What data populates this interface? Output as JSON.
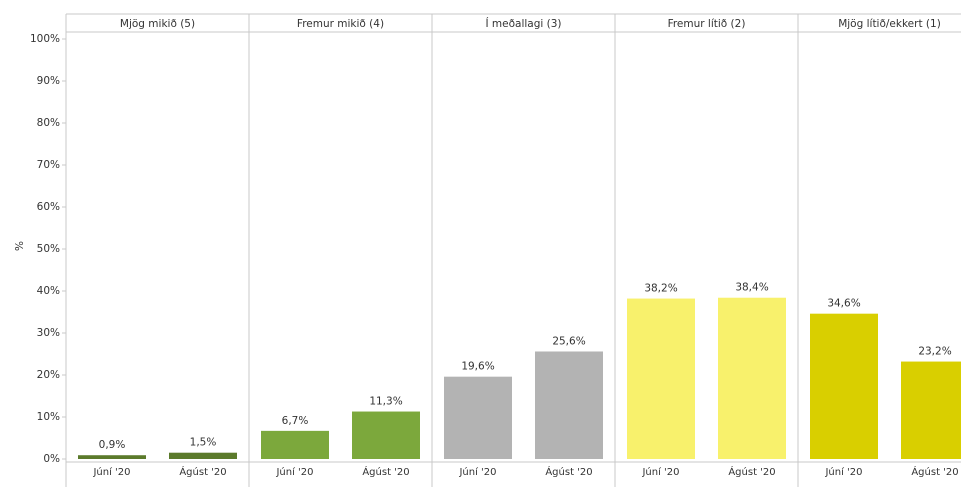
{
  "chart_data": {
    "type": "bar",
    "ylabel": "%",
    "ylim": [
      0,
      100
    ],
    "yticks": [
      {
        "value": 0,
        "label": "0%"
      },
      {
        "value": 10,
        "label": "10%"
      },
      {
        "value": 20,
        "label": "20%"
      },
      {
        "value": 30,
        "label": "30%"
      },
      {
        "value": 40,
        "label": "40%"
      },
      {
        "value": 50,
        "label": "50%"
      },
      {
        "value": 60,
        "label": "60%"
      },
      {
        "value": 70,
        "label": "70%"
      },
      {
        "value": 80,
        "label": "80%"
      },
      {
        "value": 90,
        "label": "90%"
      },
      {
        "value": 100,
        "label": "100%"
      }
    ],
    "grid": false,
    "panels": [
      {
        "title": "Mjög mikið (5)",
        "color": "#5b7a2b",
        "categories": [
          "Júní '20",
          "Ágúst '20"
        ],
        "values": [
          0.9,
          1.5
        ],
        "value_labels": [
          "0,9%",
          "1,5%"
        ]
      },
      {
        "title": "Fremur mikið (4)",
        "color": "#7ca83c",
        "categories": [
          "Júní '20",
          "Ágúst '20"
        ],
        "values": [
          6.7,
          11.3
        ],
        "value_labels": [
          "6,7%",
          "11,3%"
        ]
      },
      {
        "title": "Í meðallagi (3)",
        "color": "#b3b3b3",
        "categories": [
          "Júní '20",
          "Ágúst '20"
        ],
        "values": [
          19.6,
          25.6
        ],
        "value_labels": [
          "19,6%",
          "25,6%"
        ]
      },
      {
        "title": "Fremur lítið (2)",
        "color": "#f8f16c",
        "categories": [
          "Júní '20",
          "Ágúst '20"
        ],
        "values": [
          38.2,
          38.4
        ],
        "value_labels": [
          "38,2%",
          "38,4%"
        ]
      },
      {
        "title": "Mjög lítið/ekkert (1)",
        "color": "#d9cf00",
        "categories": [
          "Júní '20",
          "Ágúst '20"
        ],
        "values": [
          34.6,
          23.2
        ],
        "value_labels": [
          "34,6%",
          "23,2%"
        ]
      }
    ]
  }
}
